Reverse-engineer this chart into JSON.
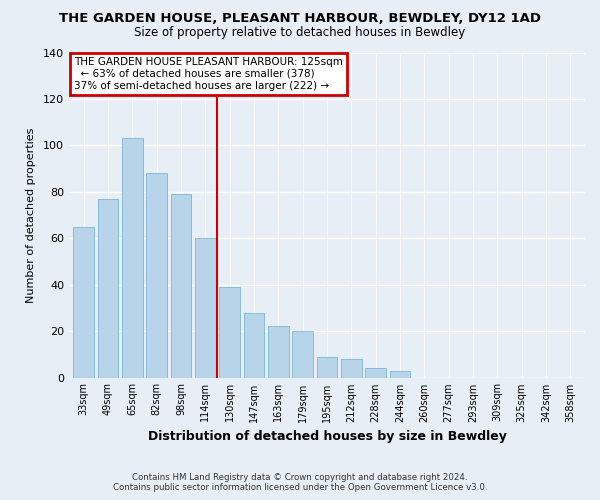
{
  "title": "THE GARDEN HOUSE, PLEASANT HARBOUR, BEWDLEY, DY12 1AD",
  "subtitle": "Size of property relative to detached houses in Bewdley",
  "xlabel": "Distribution of detached houses by size in Bewdley",
  "ylabel": "Number of detached properties",
  "footer_line1": "Contains HM Land Registry data © Crown copyright and database right 2024.",
  "footer_line2": "Contains public sector information licensed under the Open Government Licence v3.0.",
  "bar_labels": [
    "33sqm",
    "49sqm",
    "65sqm",
    "82sqm",
    "98sqm",
    "114sqm",
    "130sqm",
    "147sqm",
    "163sqm",
    "179sqm",
    "195sqm",
    "212sqm",
    "228sqm",
    "244sqm",
    "260sqm",
    "277sqm",
    "293sqm",
    "309sqm",
    "325sqm",
    "342sqm",
    "358sqm"
  ],
  "bar_values": [
    65,
    77,
    103,
    88,
    79,
    60,
    39,
    28,
    22,
    20,
    9,
    8,
    4,
    3,
    0,
    0,
    0,
    0,
    0,
    0,
    0
  ],
  "highlight_index": 5,
  "bar_color_normal": "#b8d4e8",
  "bar_edge_color": "#6baed6",
  "highlight_line_color": "#cc0000",
  "annotation_title": "THE GARDEN HOUSE PLEASANT HARBOUR: 125sqm",
  "annotation_line1": "← 63% of detached houses are smaller (378)",
  "annotation_line2": "37% of semi-detached houses are larger (222) →",
  "annotation_box_color": "#cc0000",
  "ylim": [
    0,
    140
  ],
  "yticks": [
    0,
    20,
    40,
    60,
    80,
    100,
    120,
    140
  ],
  "background_color": "#e8eef5",
  "plot_bg_color": "#e8eef5"
}
